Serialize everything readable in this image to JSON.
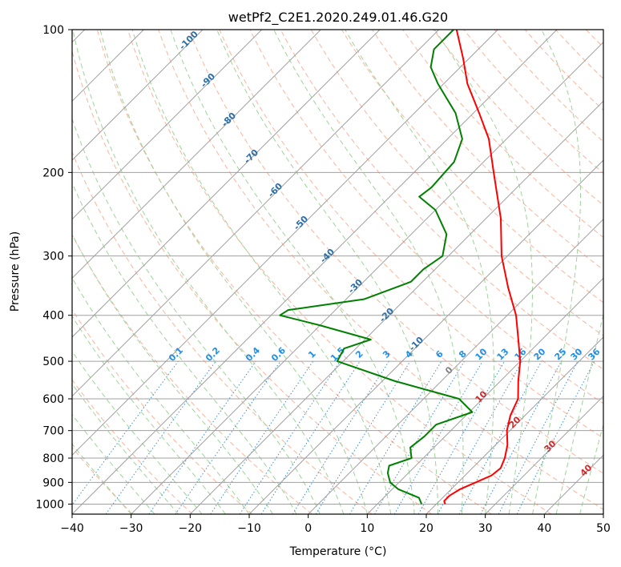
{
  "chart_data": {
    "type": "line",
    "title": "wetPf2_C2E1.2020.249.01.46.G20",
    "xlabel": "Temperature (°C)",
    "ylabel": "Pressure (hPa)",
    "xlim": [
      -40,
      50
    ],
    "ylim": [
      1050,
      100
    ],
    "y_scale": "log",
    "skew": true,
    "grid": true,
    "x_ticks": [
      "−40",
      "−30",
      "−20",
      "−10",
      "0",
      "10",
      "20",
      "30",
      "40",
      "50"
    ],
    "y_ticks": [
      "100",
      "200",
      "300",
      "400",
      "500",
      "600",
      "700",
      "800",
      "900",
      "1000"
    ],
    "series": [
      {
        "role": "temperature",
        "color": "#ff0000",
        "points": [
          {
            "p": 1000,
            "t": 21.5
          },
          {
            "p": 985,
            "t": 20.8
          },
          {
            "p": 960,
            "t": 20.8
          },
          {
            "p": 930,
            "t": 21.5
          },
          {
            "p": 900,
            "t": 23.0
          },
          {
            "p": 870,
            "t": 24.5
          },
          {
            "p": 840,
            "t": 24.8
          },
          {
            "p": 800,
            "t": 23.8
          },
          {
            "p": 750,
            "t": 22.0
          },
          {
            "p": 700,
            "t": 19.5
          },
          {
            "p": 650,
            "t": 17.5
          },
          {
            "p": 600,
            "t": 16.0
          },
          {
            "p": 550,
            "t": 13.0
          },
          {
            "p": 500,
            "t": 10.0
          },
          {
            "p": 450,
            "t": 6.0
          },
          {
            "p": 400,
            "t": 1.5
          },
          {
            "p": 350,
            "t": -4.5
          },
          {
            "p": 300,
            "t": -11.0
          },
          {
            "p": 250,
            "t": -17.5
          },
          {
            "p": 200,
            "t": -26.5
          },
          {
            "p": 170,
            "t": -33.0
          },
          {
            "p": 150,
            "t": -39.0
          },
          {
            "p": 130,
            "t": -46.0
          },
          {
            "p": 115,
            "t": -51.0
          },
          {
            "p": 100,
            "t": -57.0
          }
        ]
      },
      {
        "role": "dewpoint",
        "color": "#008000",
        "points": [
          {
            "p": 1000,
            "t": 17.5
          },
          {
            "p": 970,
            "t": 16.0
          },
          {
            "p": 930,
            "t": 11.0
          },
          {
            "p": 900,
            "t": 8.5
          },
          {
            "p": 860,
            "t": 6.5
          },
          {
            "p": 830,
            "t": 5.5
          },
          {
            "p": 800,
            "t": 8.0
          },
          {
            "p": 760,
            "t": 6.0
          },
          {
            "p": 720,
            "t": 6.5
          },
          {
            "p": 680,
            "t": 6.5
          },
          {
            "p": 640,
            "t": 10.5
          },
          {
            "p": 600,
            "t": 6.0
          },
          {
            "p": 550,
            "t": -8.0
          },
          {
            "p": 500,
            "t": -21.0
          },
          {
            "p": 470,
            "t": -22.0
          },
          {
            "p": 450,
            "t": -19.0
          },
          {
            "p": 420,
            "t": -30.0
          },
          {
            "p": 400,
            "t": -38.5
          },
          {
            "p": 390,
            "t": -38.0
          },
          {
            "p": 370,
            "t": -27.0
          },
          {
            "p": 340,
            "t": -22.0
          },
          {
            "p": 320,
            "t": -22.0
          },
          {
            "p": 300,
            "t": -21.0
          },
          {
            "p": 270,
            "t": -24.0
          },
          {
            "p": 240,
            "t": -30.0
          },
          {
            "p": 225,
            "t": -35.0
          },
          {
            "p": 215,
            "t": -34.5
          },
          {
            "p": 190,
            "t": -35.0
          },
          {
            "p": 170,
            "t": -37.5
          },
          {
            "p": 150,
            "t": -43.0
          },
          {
            "p": 130,
            "t": -51.0
          },
          {
            "p": 120,
            "t": -55.0
          },
          {
            "p": 110,
            "t": -57.5
          },
          {
            "p": 100,
            "t": -57.5
          }
        ]
      }
    ],
    "dry_adiabat_labels": [
      "-100",
      "-90",
      "-80",
      "-70",
      "-60",
      "-50",
      "-40",
      "-30",
      "-20",
      "-10"
    ],
    "moist_adiabat_labels": [
      "0",
      "10",
      "20",
      "30",
      "40"
    ],
    "mixing_ratio_labels": [
      "0.1",
      "0.2",
      "0.4",
      "0.6",
      "1",
      "1.5",
      "2",
      "3",
      "4",
      "6",
      "8",
      "10",
      "13",
      "16",
      "20",
      "25",
      "30",
      "36"
    ],
    "colors": {
      "temperature": "#ff0000",
      "dewpoint": "#008000",
      "isotherm_grid": "#a0a0a0",
      "dry_adiabat": "#fbb49c",
      "moist_adiabat": "#9fd39a",
      "mixing_ratio": "#3e8fd8",
      "dry_label": "#2a6fa8",
      "moist_label": "#d62728",
      "mixing_label": "#1f8fe8"
    }
  }
}
